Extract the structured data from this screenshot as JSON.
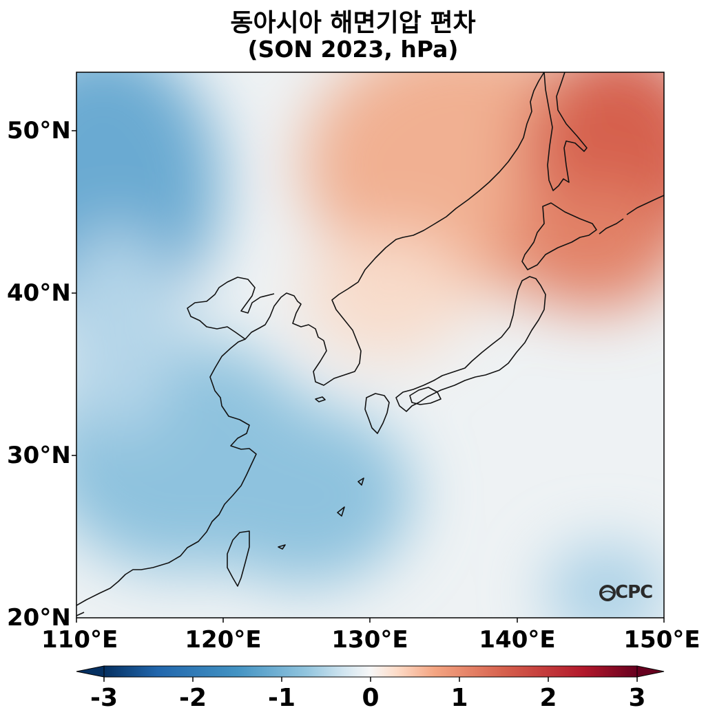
{
  "title": {
    "line1": "동아시아 해면기압 편차",
    "line2": "(SON 2023, hPa)"
  },
  "map": {
    "region": "East Asia",
    "lon_range": [
      110,
      150
    ],
    "lat_range": [
      20,
      53.5
    ],
    "colormap": "RdBu_r",
    "x_ticks": [
      "110°E",
      "120°E",
      "130°E",
      "140°E",
      "150°E"
    ],
    "y_ticks": [
      "20°N",
      "30°N",
      "40°N",
      "50°N"
    ],
    "logo_text": "OCPC"
  },
  "colorbar": {
    "range": [
      -3,
      3
    ],
    "extend": "both",
    "ticks": [
      "-3",
      "-2",
      "-1",
      "0",
      "1",
      "2",
      "3"
    ]
  },
  "chart_data": {
    "type": "heatmap",
    "title": "동아시아 해면기압 편차 (SON 2023, hPa)",
    "xlabel": "",
    "ylabel": "",
    "x_ticks": [
      "110°E",
      "120°E",
      "130°E",
      "140°E",
      "150°E"
    ],
    "y_ticks": [
      "20°N",
      "30°N",
      "40°N",
      "50°N"
    ],
    "value_range": [
      -3,
      3
    ],
    "anomaly_centers": [
      {
        "lon": 112,
        "lat": 46.5,
        "value": -1.3
      },
      {
        "lon": 124,
        "lat": 28,
        "value": -1.1
      },
      {
        "lon": 115,
        "lat": 29,
        "value": -1.0
      },
      {
        "lon": 149,
        "lat": 49,
        "value": 2.2
      },
      {
        "lon": 140,
        "lat": 46,
        "value": 1.6
      },
      {
        "lon": 135,
        "lat": 45,
        "value": 1.0
      },
      {
        "lon": 130,
        "lat": 50,
        "value": 0.3
      },
      {
        "lon": 149,
        "lat": 21,
        "value": -0.6
      },
      {
        "lon": 133,
        "lat": 32,
        "value": 0.0
      }
    ]
  }
}
